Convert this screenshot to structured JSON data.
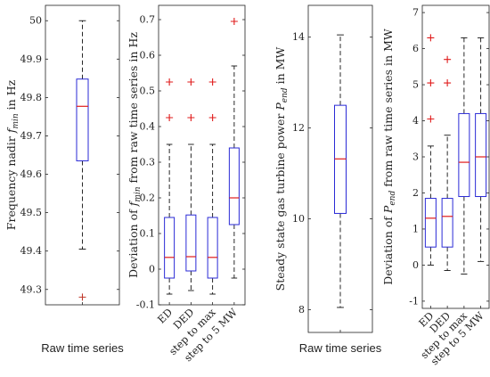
{
  "chart_data": [
    {
      "type": "boxplot",
      "ylabel_main": "Frequency nadir ",
      "ylabel_italic": "f",
      "ylabel_sub": "min",
      "ylabel_unit": " in Hz",
      "ylim": [
        49.26,
        50.04
      ],
      "yticks": [
        49.3,
        49.4,
        49.5,
        49.6,
        49.7,
        49.8,
        49.9,
        50
      ],
      "ytick_labels": [
        "49.3",
        "49.4",
        "49.5",
        "49.6",
        "49.7",
        "49.8",
        "49.9",
        "50"
      ],
      "category_label": "Raw time series",
      "boxes": [
        {
          "category": "Raw time series",
          "whisker_low": 49.405,
          "q1": 49.635,
          "median": 49.777,
          "q3": 49.848,
          "whisker_high": 50.0,
          "outliers": [
            49.28
          ]
        }
      ],
      "outlier_color": "#c0392b"
    },
    {
      "type": "boxplot",
      "ylabel_pre": "Deviation of ",
      "ylabel_italic": "f",
      "ylabel_sub": "min",
      "ylabel_post": " from raw time series in Hz",
      "ylim": [
        -0.1,
        0.74
      ],
      "yticks": [
        -0.1,
        0,
        0.1,
        0.2,
        0.3,
        0.4,
        0.5,
        0.6,
        0.7
      ],
      "ytick_labels": [
        "-0.1",
        "0",
        "0.1",
        "0.2",
        "0.3",
        "0.4",
        "0.5",
        "0.6",
        "0.7"
      ],
      "categories": [
        "ED",
        "DED",
        "step to max",
        "step to 5 MW"
      ],
      "boxes": [
        {
          "category": "ED",
          "whisker_low": -0.07,
          "q1": -0.025,
          "median": 0.033,
          "q3": 0.145,
          "whisker_high": 0.35,
          "outliers": [
            0.425,
            0.525
          ]
        },
        {
          "category": "DED",
          "whisker_low": -0.06,
          "q1": -0.005,
          "median": 0.035,
          "q3": 0.152,
          "whisker_high": 0.35,
          "outliers": [
            0.425,
            0.525
          ]
        },
        {
          "category": "step to max",
          "whisker_low": -0.07,
          "q1": -0.025,
          "median": 0.033,
          "q3": 0.145,
          "whisker_high": 0.35,
          "outliers": [
            0.425,
            0.525
          ]
        },
        {
          "category": "step to 5 MW",
          "whisker_low": -0.025,
          "q1": 0.125,
          "median": 0.2,
          "q3": 0.34,
          "whisker_high": 0.57,
          "outliers": [
            0.695
          ]
        }
      ]
    },
    {
      "type": "boxplot",
      "ylabel_pre": "Steady state gas turbine power ",
      "ylabel_italic": "P",
      "ylabel_sub": "end",
      "ylabel_post": " in MW",
      "ylim": [
        7.5,
        14.7
      ],
      "yticks": [
        8,
        10,
        12,
        14
      ],
      "ytick_labels": [
        "8",
        "10",
        "12",
        "14"
      ],
      "category_label": "Raw time series",
      "boxes": [
        {
          "category": "Raw time series",
          "whisker_low": 8.05,
          "q1": 10.12,
          "median": 11.32,
          "q3": 12.5,
          "whisker_high": 14.05,
          "outliers": []
        }
      ]
    },
    {
      "type": "boxplot",
      "ylabel_pre": "Deviation of ",
      "ylabel_italic": "P",
      "ylabel_sub": "end",
      "ylabel_post": " from raw time series in MW",
      "ylim": [
        -1.2,
        7.2
      ],
      "yticks": [
        -1,
        0,
        1,
        2,
        3,
        4,
        5,
        6,
        7
      ],
      "ytick_labels": [
        "-1",
        "0",
        "1",
        "2",
        "3",
        "4",
        "5",
        "6",
        "7"
      ],
      "categories": [
        "ED",
        "DED",
        "step to max",
        "step to 5 MW"
      ],
      "boxes": [
        {
          "category": "ED",
          "whisker_low": 0.0,
          "q1": 0.5,
          "median": 1.3,
          "q3": 1.85,
          "whisker_high": 3.3,
          "outliers": [
            4.05,
            5.05,
            6.3
          ]
        },
        {
          "category": "DED",
          "whisker_low": -0.15,
          "q1": 0.5,
          "median": 1.35,
          "q3": 1.85,
          "whisker_high": 3.6,
          "outliers": [
            5.05,
            5.7
          ]
        },
        {
          "category": "step to max",
          "whisker_low": -0.25,
          "q1": 1.9,
          "median": 2.85,
          "q3": 4.2,
          "whisker_high": 6.3,
          "outliers": []
        },
        {
          "category": "step to 5 MW",
          "whisker_low": 0.1,
          "q1": 1.9,
          "median": 3.0,
          "q3": 4.2,
          "whisker_high": 6.3,
          "outliers": []
        }
      ]
    }
  ]
}
